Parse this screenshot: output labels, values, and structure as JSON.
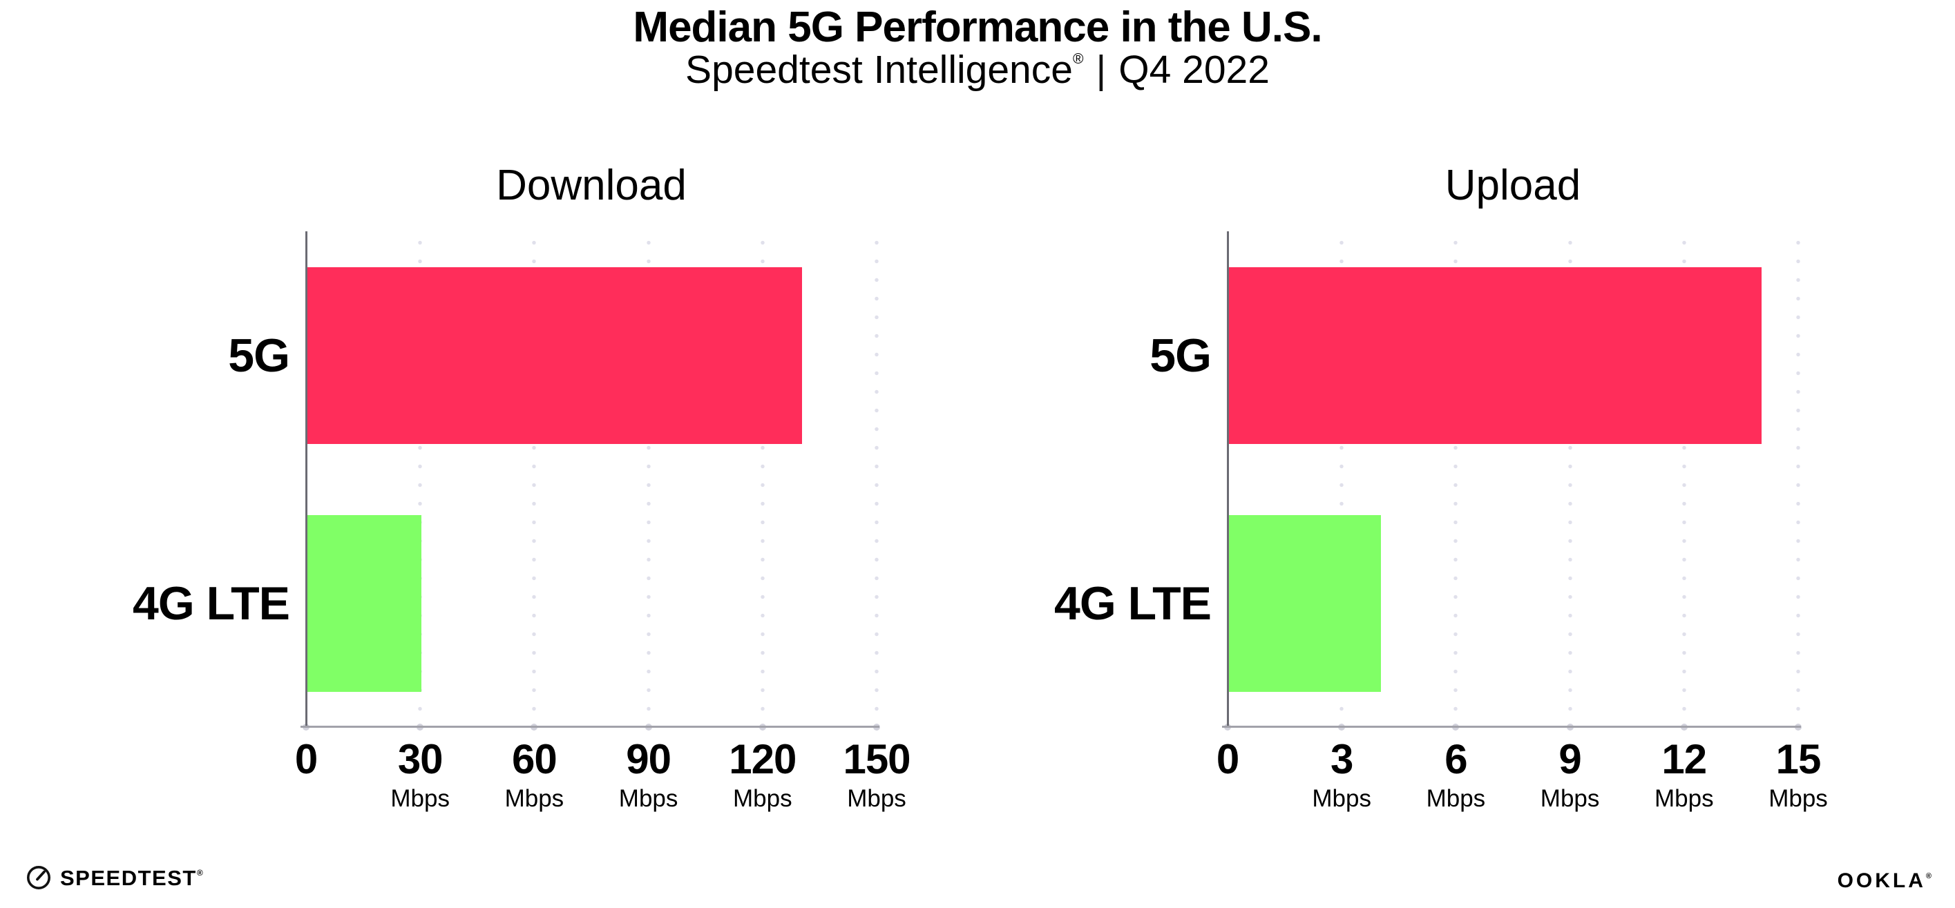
{
  "header": {
    "title": "Median 5G Performance in the U.S.",
    "brand": "Speedtest Intelligence",
    "registered_mark": "®",
    "separator": "|",
    "period": "Q4 2022"
  },
  "footer": {
    "speedtest_wordmark": "SPEEDTEST",
    "speedtest_mark": "®",
    "ookla_wordmark": "OOKLA",
    "ookla_mark": "®"
  },
  "colors": {
    "bar_series": [
      "#FF2D5A",
      "#80FF66"
    ],
    "gridline_dot": "#E0E0EB",
    "x_axis": "#A2A2AA",
    "y_axis": "#6B6B73",
    "tick_dot": "#D2D2DC",
    "text": "#000000"
  },
  "chart_data": [
    {
      "type": "bar",
      "orientation": "horizontal",
      "title": "Download",
      "categories": [
        "5G",
        "4G LTE"
      ],
      "values": [
        130,
        30
      ],
      "unit": "Mbps",
      "xlabel": "",
      "ylabel": "",
      "xlim": [
        0,
        150
      ],
      "xticks": [
        0,
        30,
        60,
        90,
        120,
        150
      ],
      "grid": "dotted vertical gridlines at labeled ticks",
      "legend": "none"
    },
    {
      "type": "bar",
      "orientation": "horizontal",
      "title": "Upload",
      "categories": [
        "5G",
        "4G LTE"
      ],
      "values": [
        14,
        4
      ],
      "unit": "Mbps",
      "xlabel": "",
      "ylabel": "",
      "xlim": [
        0,
        15
      ],
      "xticks": [
        0,
        3,
        6,
        9,
        12,
        15
      ],
      "grid": "dotted vertical gridlines at labeled ticks",
      "legend": "none"
    }
  ]
}
